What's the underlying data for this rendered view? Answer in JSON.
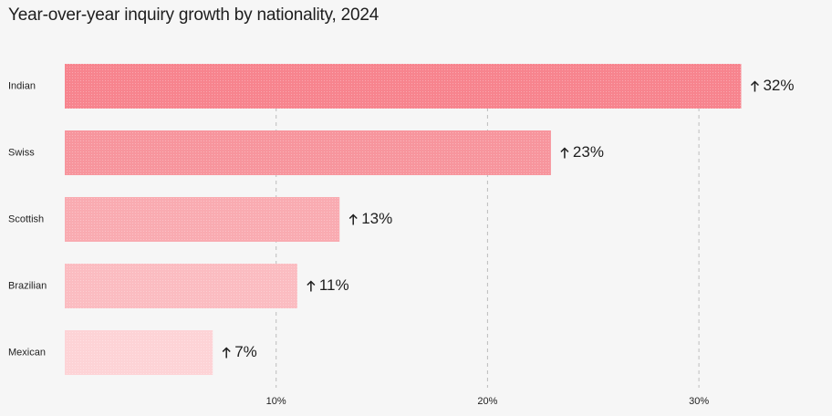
{
  "chart_data": {
    "type": "bar",
    "orientation": "horizontal",
    "title": "Year-over-year inquiry growth by nationality, 2024",
    "categories": [
      "Indian",
      "Swiss",
      "Scottish",
      "Brazilian",
      "Mexican"
    ],
    "values": [
      32,
      23,
      13,
      11,
      7
    ],
    "value_labels": [
      "32%",
      "23%",
      "13%",
      "11%",
      "7%"
    ],
    "value_prefix_icon": "arrow-up-icon",
    "x_ticks": [
      10,
      20,
      30
    ],
    "x_tick_labels": [
      "10%",
      "20%",
      "30%"
    ],
    "xlim": [
      0,
      33
    ],
    "grid": "vertical-dashed",
    "xlabel": "",
    "ylabel": "",
    "bar_colors": [
      "#f7848e",
      "#f7959d",
      "#f9abb1",
      "#fbbcc1",
      "#fdd3d6"
    ]
  }
}
